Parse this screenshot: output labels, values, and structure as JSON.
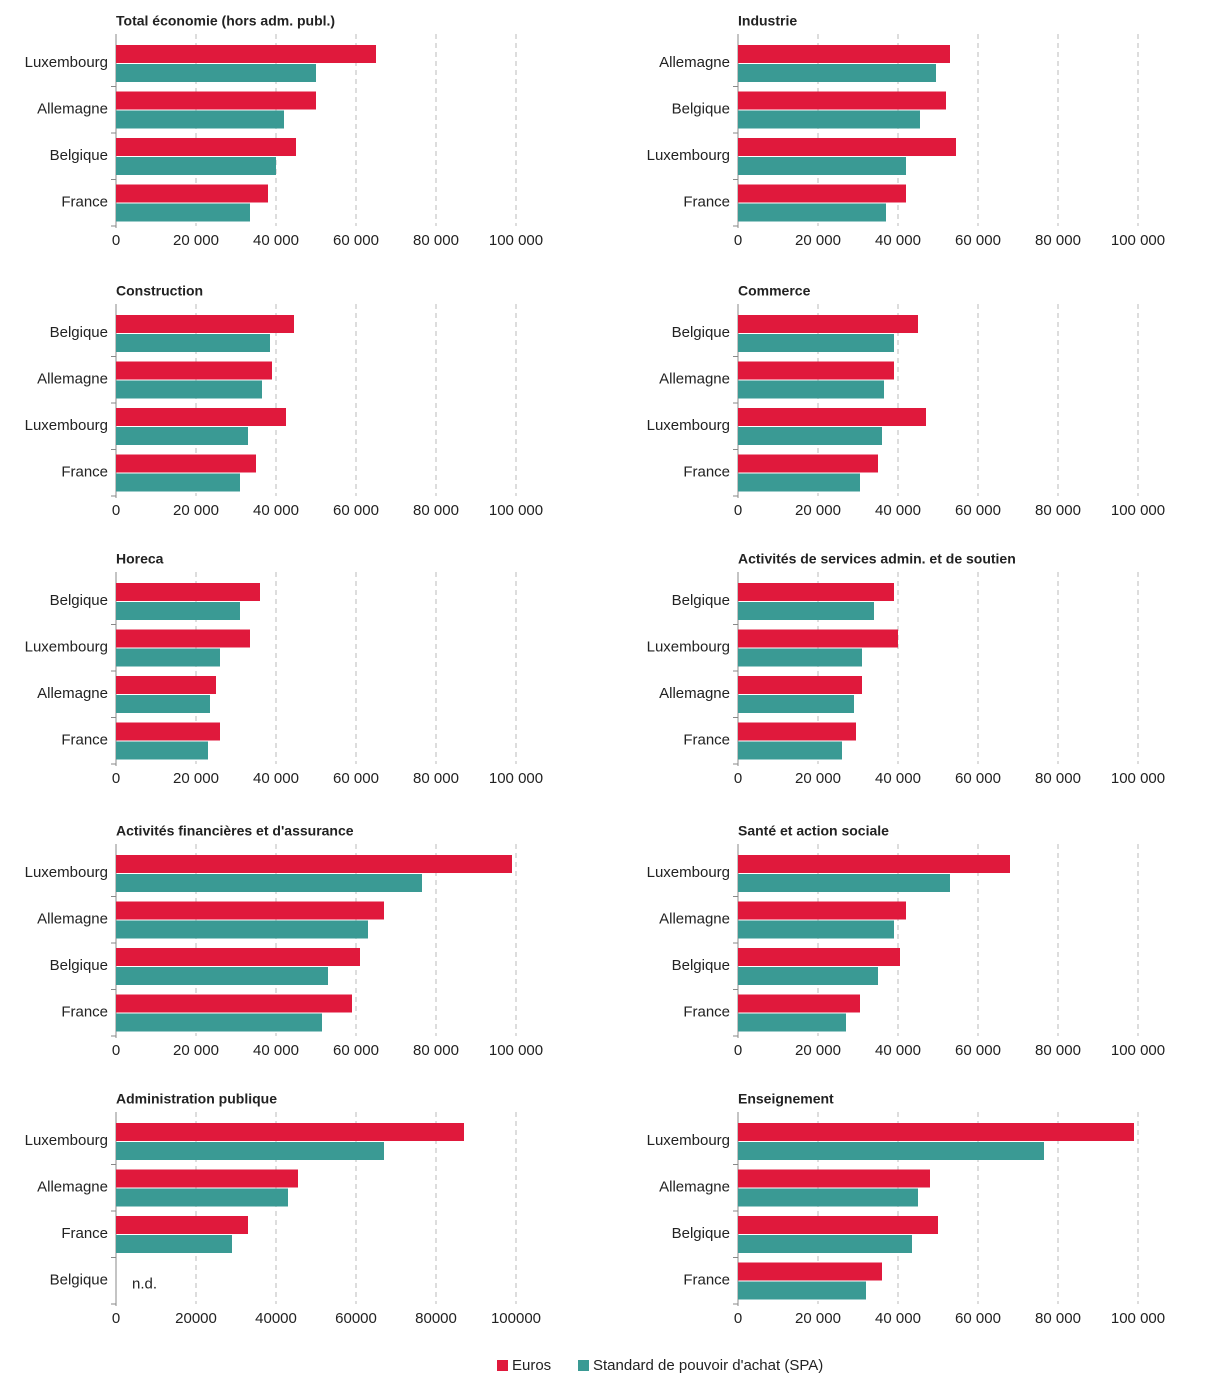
{
  "legend": {
    "series": [
      {
        "name": "Euros",
        "color": "#e0193c"
      },
      {
        "name": "Standard de pouvoir d'achat (SPA)",
        "color": "#3a9a94"
      }
    ]
  },
  "chart_data": [
    {
      "type": "bar",
      "title": "Total économie (hors adm. publ.)",
      "categories": [
        "Luxembourg",
        "Allemagne",
        "Belgique",
        "France"
      ],
      "series": [
        {
          "values": [
            65000,
            50000,
            45000,
            38000
          ]
        },
        {
          "values": [
            50000,
            42000,
            40000,
            33500
          ]
        }
      ],
      "xlim": [
        0,
        100000
      ],
      "xticks": [
        0,
        {
          "value": 20000,
          "label": "20 000"
        },
        {
          "value": 40000,
          "label": "40 000"
        },
        {
          "value": 60000,
          "label": "60 000"
        },
        {
          "value": 80000,
          "label": "80 000"
        },
        {
          "value": 100000,
          "label": "100 000"
        }
      ]
    },
    {
      "type": "bar",
      "title": "Industrie",
      "categories": [
        "Allemagne",
        "Belgique",
        "Luxembourg",
        "France"
      ],
      "series": [
        {
          "values": [
            53000,
            52000,
            54500,
            42000
          ]
        },
        {
          "values": [
            49500,
            45500,
            42000,
            37000
          ]
        }
      ],
      "xlim": [
        0,
        100000
      ],
      "xticks": [
        0,
        {
          "value": 20000,
          "label": "20 000"
        },
        {
          "value": 40000,
          "label": "40 000"
        },
        {
          "value": 60000,
          "label": "60 000"
        },
        {
          "value": 80000,
          "label": "80 000"
        },
        {
          "value": 100000,
          "label": "100 000"
        }
      ]
    },
    {
      "type": "bar",
      "title": "Construction",
      "categories": [
        "Belgique",
        "Allemagne",
        "Luxembourg",
        "France"
      ],
      "series": [
        {
          "values": [
            44500,
            39000,
            42500,
            35000
          ]
        },
        {
          "values": [
            38500,
            36500,
            33000,
            31000
          ]
        }
      ],
      "xlim": [
        0,
        100000
      ],
      "xticks": [
        0,
        {
          "value": 20000,
          "label": "20 000"
        },
        {
          "value": 40000,
          "label": "40 000"
        },
        {
          "value": 60000,
          "label": "60 000"
        },
        {
          "value": 80000,
          "label": "80 000"
        },
        {
          "value": 100000,
          "label": "100 000"
        }
      ]
    },
    {
      "type": "bar",
      "title": "Commerce",
      "categories": [
        "Belgique",
        "Allemagne",
        "Luxembourg",
        "France"
      ],
      "series": [
        {
          "values": [
            45000,
            39000,
            47000,
            35000
          ]
        },
        {
          "values": [
            39000,
            36500,
            36000,
            30500
          ]
        }
      ],
      "xlim": [
        0,
        100000
      ],
      "xticks": [
        0,
        {
          "value": 20000,
          "label": "20 000"
        },
        {
          "value": 40000,
          "label": "40 000"
        },
        {
          "value": 60000,
          "label": "60 000"
        },
        {
          "value": 80000,
          "label": "80 000"
        },
        {
          "value": 100000,
          "label": "100 000"
        }
      ]
    },
    {
      "type": "bar",
      "title": "Horeca",
      "categories": [
        "Belgique",
        "Luxembourg",
        "Allemagne",
        "France"
      ],
      "series": [
        {
          "values": [
            36000,
            33500,
            25000,
            26000
          ]
        },
        {
          "values": [
            31000,
            26000,
            23500,
            23000
          ]
        }
      ],
      "xlim": [
        0,
        100000
      ],
      "xticks": [
        0,
        {
          "value": 20000,
          "label": "20 000"
        },
        {
          "value": 40000,
          "label": "40 000"
        },
        {
          "value": 60000,
          "label": "60 000"
        },
        {
          "value": 80000,
          "label": "80 000"
        },
        {
          "value": 100000,
          "label": "100 000"
        }
      ]
    },
    {
      "type": "bar",
      "title": "Activités de services admin. et de soutien",
      "categories": [
        "Belgique",
        "Luxembourg",
        "Allemagne",
        "France"
      ],
      "series": [
        {
          "values": [
            39000,
            40000,
            31000,
            29500
          ]
        },
        {
          "values": [
            34000,
            31000,
            29000,
            26000
          ]
        }
      ],
      "xlim": [
        0,
        100000
      ],
      "xticks": [
        0,
        {
          "value": 20000,
          "label": "20 000"
        },
        {
          "value": 40000,
          "label": "40 000"
        },
        {
          "value": 60000,
          "label": "60 000"
        },
        {
          "value": 80000,
          "label": "80 000"
        },
        {
          "value": 100000,
          "label": "100 000"
        }
      ]
    },
    {
      "type": "bar",
      "title": "Activités financières et d'assurance",
      "categories": [
        "Luxembourg",
        "Allemagne",
        "Belgique",
        "France"
      ],
      "series": [
        {
          "values": [
            99000,
            67000,
            61000,
            59000
          ]
        },
        {
          "values": [
            76500,
            63000,
            53000,
            51500
          ]
        }
      ],
      "xlim": [
        0,
        100000
      ],
      "xticks": [
        0,
        {
          "value": 20000,
          "label": "20 000"
        },
        {
          "value": 40000,
          "label": "40 000"
        },
        {
          "value": 60000,
          "label": "60 000"
        },
        {
          "value": 80000,
          "label": "80 000"
        },
        {
          "value": 100000,
          "label": "100 000"
        }
      ]
    },
    {
      "type": "bar",
      "title": "Santé et action sociale",
      "categories": [
        "Luxembourg",
        "Allemagne",
        "Belgique",
        "France"
      ],
      "series": [
        {
          "values": [
            68000,
            42000,
            40500,
            30500
          ]
        },
        {
          "values": [
            53000,
            39000,
            35000,
            27000
          ]
        }
      ],
      "xlim": [
        0,
        100000
      ],
      "xticks": [
        0,
        {
          "value": 20000,
          "label": "20 000"
        },
        {
          "value": 40000,
          "label": "40 000"
        },
        {
          "value": 60000,
          "label": "60 000"
        },
        {
          "value": 80000,
          "label": "80 000"
        },
        {
          "value": 100000,
          "label": "100 000"
        }
      ]
    },
    {
      "type": "bar",
      "title": "Administration publique",
      "categories": [
        "Luxembourg",
        "Allemagne",
        "France",
        "Belgique"
      ],
      "series": [
        {
          "values": [
            87000,
            45500,
            33000,
            null
          ]
        },
        {
          "values": [
            67000,
            43000,
            29000,
            null
          ]
        }
      ],
      "annotation": "n.d.",
      "xlim": [
        0,
        100000
      ],
      "xticks": [
        0,
        20000,
        40000,
        60000,
        80000,
        100000
      ]
    },
    {
      "type": "bar",
      "title": "Enseignement",
      "categories": [
        "Luxembourg",
        "Allemagne",
        "Belgique",
        "France"
      ],
      "series": [
        {
          "values": [
            99000,
            48000,
            50000,
            36000
          ]
        },
        {
          "values": [
            76500,
            45000,
            43500,
            32000
          ]
        }
      ],
      "xlim": [
        0,
        100000
      ],
      "xticks": [
        0,
        {
          "value": 20000,
          "label": "20 000"
        },
        {
          "value": 40000,
          "label": "40 000"
        },
        {
          "value": 60000,
          "label": "60 000"
        },
        {
          "value": 80000,
          "label": "80 000"
        },
        {
          "value": 100000,
          "label": "100 000"
        }
      ]
    }
  ]
}
